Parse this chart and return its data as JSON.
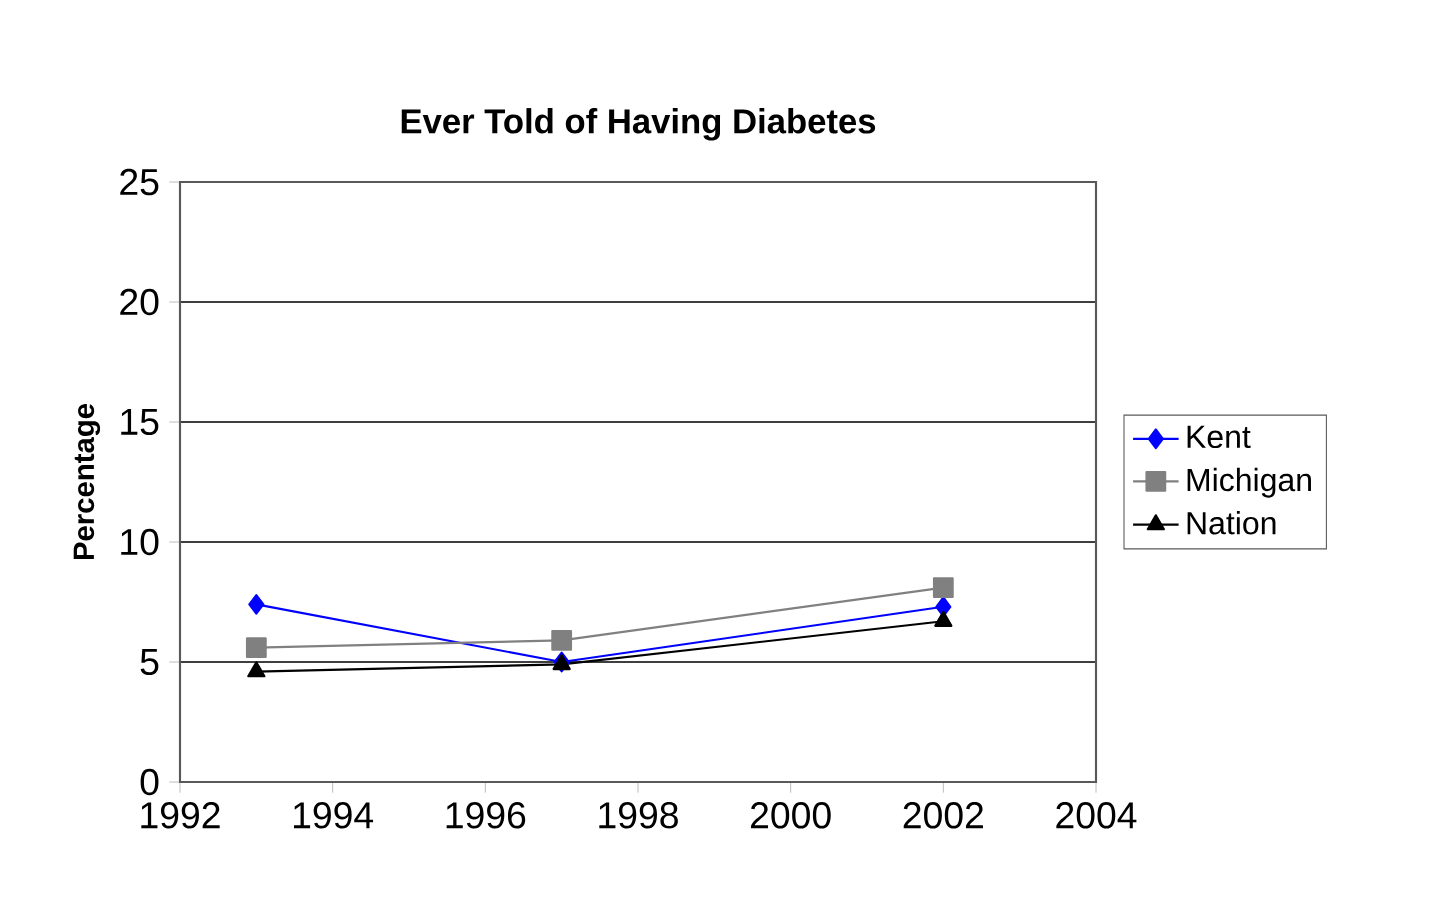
{
  "chart_data": {
    "type": "line",
    "title": "Ever Told of Having Diabetes",
    "ylabel": "Percentage",
    "x": [
      1993,
      1997,
      2002
    ],
    "series": [
      {
        "name": "Kent",
        "color": "#0000ff",
        "marker": "diamond",
        "values": [
          7.4,
          5.0,
          7.3
        ]
      },
      {
        "name": "Michigan",
        "color": "#808080",
        "marker": "square",
        "values": [
          5.6,
          5.9,
          8.1
        ]
      },
      {
        "name": "Nation",
        "color": "#000000",
        "marker": "triangle",
        "values": [
          4.6,
          4.9,
          6.7
        ]
      }
    ],
    "xlim": [
      1992,
      2004
    ],
    "xticks": [
      1992,
      1994,
      1996,
      1998,
      2000,
      2002,
      2004
    ],
    "ylim": [
      0,
      25
    ],
    "yticks": [
      0,
      5,
      10,
      15,
      20,
      25
    ],
    "grid": "y",
    "legend": "right",
    "line_style": "solid"
  }
}
